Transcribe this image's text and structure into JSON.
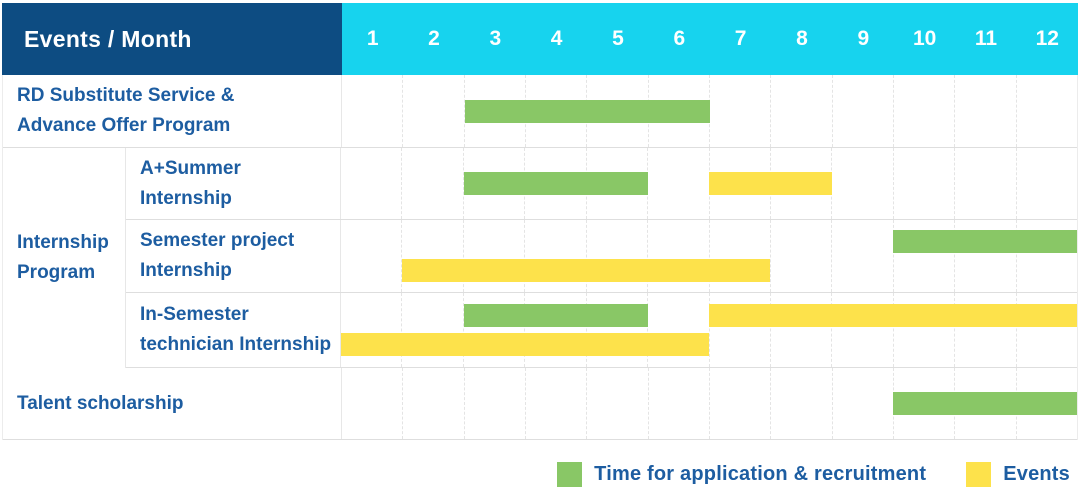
{
  "header": {
    "title": "Events / Month",
    "months": [
      "1",
      "2",
      "3",
      "4",
      "5",
      "6",
      "7",
      "8",
      "9",
      "10",
      "11",
      "12"
    ]
  },
  "colors": {
    "header_navy": "#0d4c82",
    "header_cyan": "#17d3ee",
    "application": "#89c766",
    "event": "#fde24b",
    "label_blue": "#1d5da1"
  },
  "table": {
    "sections": [
      {
        "type": "row",
        "name": "RD Substitute Service & Advance Offer Program",
        "label_lines": [
          "RD Substitute Service &",
          "Advance Offer Program"
        ],
        "bar_lines": [
          [
            {
              "kind": "application",
              "start": 3,
              "end": 6
            }
          ]
        ]
      },
      {
        "type": "group",
        "label_lines": [
          "Internship",
          "Program"
        ],
        "rows": [
          {
            "name": "A+Summer Internship",
            "label_lines": [
              "A+Summer",
              "Internship"
            ],
            "bar_lines": [
              [
                {
                  "kind": "application",
                  "start": 3,
                  "end": 5
                },
                {
                  "kind": "event",
                  "start": 7,
                  "end": 8
                }
              ]
            ]
          },
          {
            "name": "Semester project Internship",
            "label_lines": [
              "Semester project",
              "Internship"
            ],
            "bar_lines": [
              [
                {
                  "kind": "application",
                  "start": 10,
                  "end": 12
                }
              ],
              [
                {
                  "kind": "event",
                  "start": 2,
                  "end": 7
                }
              ]
            ]
          },
          {
            "name": "In-Semester technician Internship",
            "label_lines": [
              "In-Semester",
              "technician Internship"
            ],
            "bar_lines": [
              [
                {
                  "kind": "application",
                  "start": 3,
                  "end": 5
                },
                {
                  "kind": "event",
                  "start": 7,
                  "end": 12
                }
              ],
              [
                {
                  "kind": "event",
                  "start": 1,
                  "end": 6
                }
              ]
            ]
          }
        ]
      },
      {
        "type": "row",
        "name": "Talent scholarship",
        "label_lines": [
          "Talent scholarship"
        ],
        "bar_lines": [
          [
            {
              "kind": "application",
              "start": 10,
              "end": 12
            }
          ]
        ]
      }
    ]
  },
  "legend": {
    "items": [
      {
        "kind": "application",
        "label": "Time for application & recruitment"
      },
      {
        "kind": "event",
        "label": "Events"
      }
    ]
  },
  "chart_data": {
    "type": "gantt",
    "unit": "month",
    "title": "Events / Month",
    "x_categories": [
      "1",
      "2",
      "3",
      "4",
      "5",
      "6",
      "7",
      "8",
      "9",
      "10",
      "11",
      "12"
    ],
    "x_range": [
      1,
      12
    ],
    "legend": [
      {
        "name": "Time for application & recruitment",
        "color": "#89c766"
      },
      {
        "name": "Events",
        "color": "#fde24b"
      }
    ],
    "tasks": [
      {
        "group": "",
        "name": "RD Substitute Service & Advance Offer Program",
        "bars": [
          {
            "kind": "application",
            "start_month": 3,
            "end_month": 6
          }
        ]
      },
      {
        "group": "Internship Program",
        "name": "A+Summer Internship",
        "bars": [
          {
            "kind": "application",
            "start_month": 3,
            "end_month": 5
          },
          {
            "kind": "event",
            "start_month": 7,
            "end_month": 8
          }
        ]
      },
      {
        "group": "Internship Program",
        "name": "Semester project Internship",
        "bars": [
          {
            "kind": "application",
            "start_month": 10,
            "end_month": 12
          },
          {
            "kind": "event",
            "start_month": 2,
            "end_month": 7
          }
        ]
      },
      {
        "group": "Internship Program",
        "name": "In-Semester technician Internship",
        "bars": [
          {
            "kind": "application",
            "start_month": 3,
            "end_month": 5
          },
          {
            "kind": "event",
            "start_month": 7,
            "end_month": 12
          },
          {
            "kind": "event",
            "start_month": 1,
            "end_month": 6
          }
        ]
      },
      {
        "group": "",
        "name": "Talent scholarship",
        "bars": [
          {
            "kind": "application",
            "start_month": 10,
            "end_month": 12
          }
        ]
      }
    ]
  }
}
